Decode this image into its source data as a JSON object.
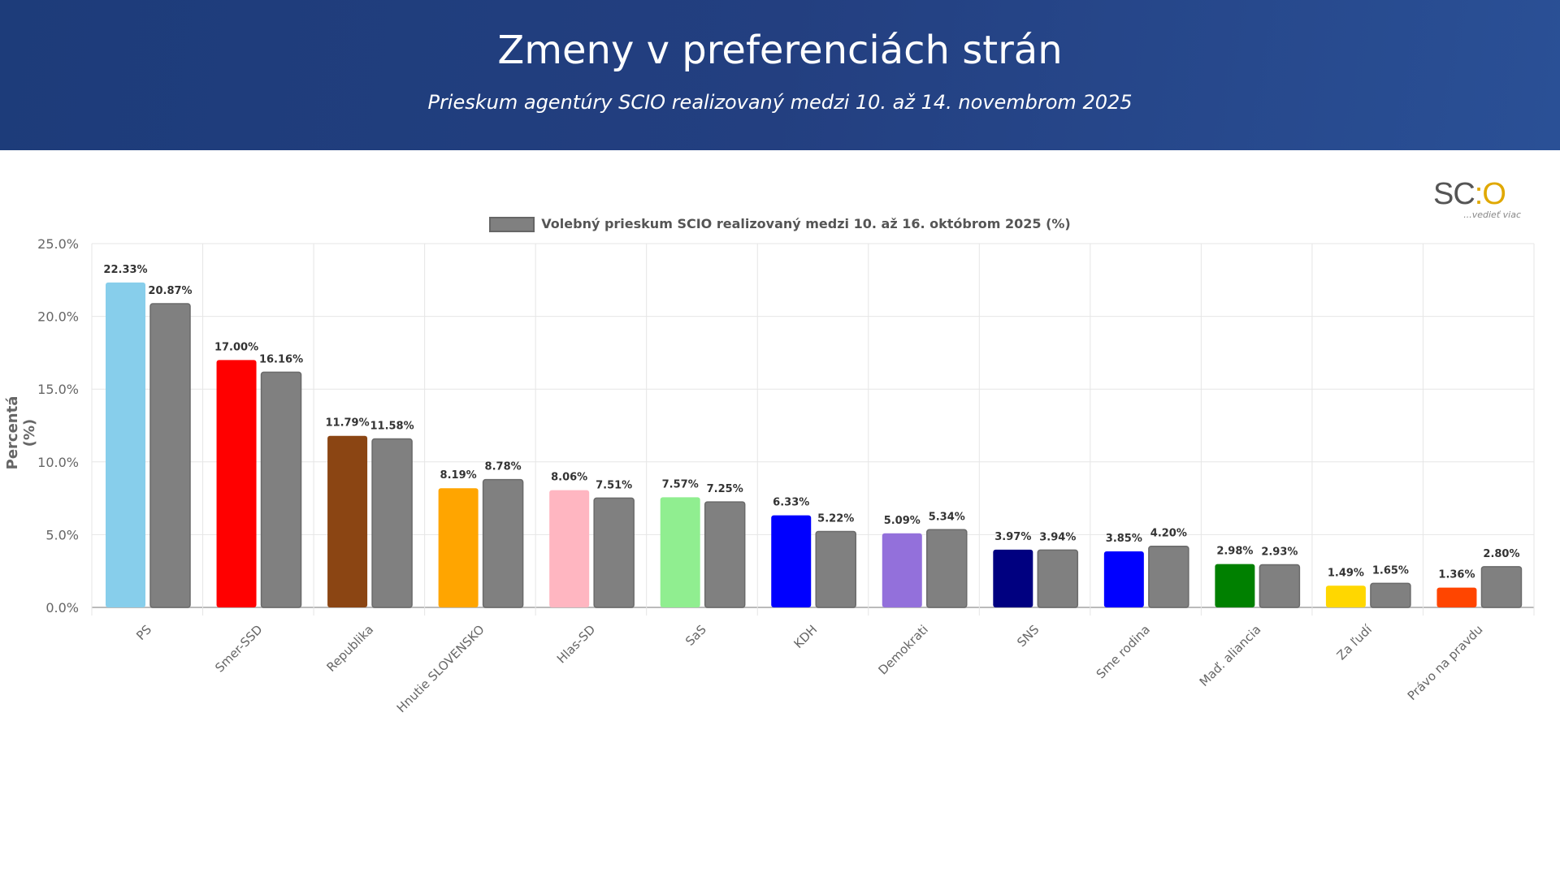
{
  "header": {
    "title": "Zmeny v preferenciách strán",
    "subtitle": "Prieskum agentúry SCIO realizovaný medzi 10. až 14. novembrom 2025"
  },
  "logo": {
    "text": "SCIO",
    "tagline": "...vedieť viac"
  },
  "chart_data": {
    "type": "bar",
    "title": "",
    "ylabel": "Percentá (%)",
    "xlabel": "",
    "ylim": [
      0,
      25
    ],
    "yticks": [
      "0.0%",
      "5.0%",
      "10.0%",
      "15.0%",
      "20.0%",
      "25.0%"
    ],
    "grid": true,
    "legend_position": "top",
    "categories": [
      "PS",
      "Smer-SSD",
      "Republika",
      "Hnutie SLOVENSKO",
      "Hlas-SD",
      "SaS",
      "KDH",
      "Demokrati",
      "SNS",
      "Sme rodina",
      "Maď. aliancia",
      "Za ľudí",
      "Právo na pravdu"
    ],
    "series": [
      {
        "values": [
          22.33,
          17.0,
          11.79,
          8.19,
          8.06,
          7.57,
          6.33,
          5.09,
          3.97,
          3.85,
          2.98,
          1.49,
          1.36
        ],
        "labels": [
          "22.33%",
          "17.00%",
          "11.79%",
          "8.19%",
          "8.06%",
          "7.57%",
          "6.33%",
          "5.09%",
          "3.97%",
          "3.85%",
          "2.98%",
          "1.49%",
          "1.36%"
        ],
        "colors": [
          "#87CEEB",
          "#FF0000",
          "#8B4513",
          "#FFA500",
          "#FFB6C1",
          "#90EE90",
          "#0000FF",
          "#9370DB",
          "#000080",
          "#0000FF",
          "#008000",
          "#FFD700",
          "#FF4500"
        ]
      },
      {
        "name": "Volebný prieskum SCIO realizovaný medzi 10. až 16. októbrom 2025 (%)",
        "values": [
          20.87,
          16.16,
          11.58,
          8.78,
          7.51,
          7.25,
          5.22,
          5.34,
          3.94,
          4.2,
          2.93,
          1.65,
          2.8
        ],
        "labels": [
          "20.87%",
          "16.16%",
          "11.58%",
          "8.78%",
          "7.51%",
          "7.25%",
          "5.22%",
          "5.34%",
          "3.94%",
          "4.20%",
          "2.93%",
          "1.65%",
          "2.80%"
        ],
        "color": "#808080"
      }
    ]
  }
}
